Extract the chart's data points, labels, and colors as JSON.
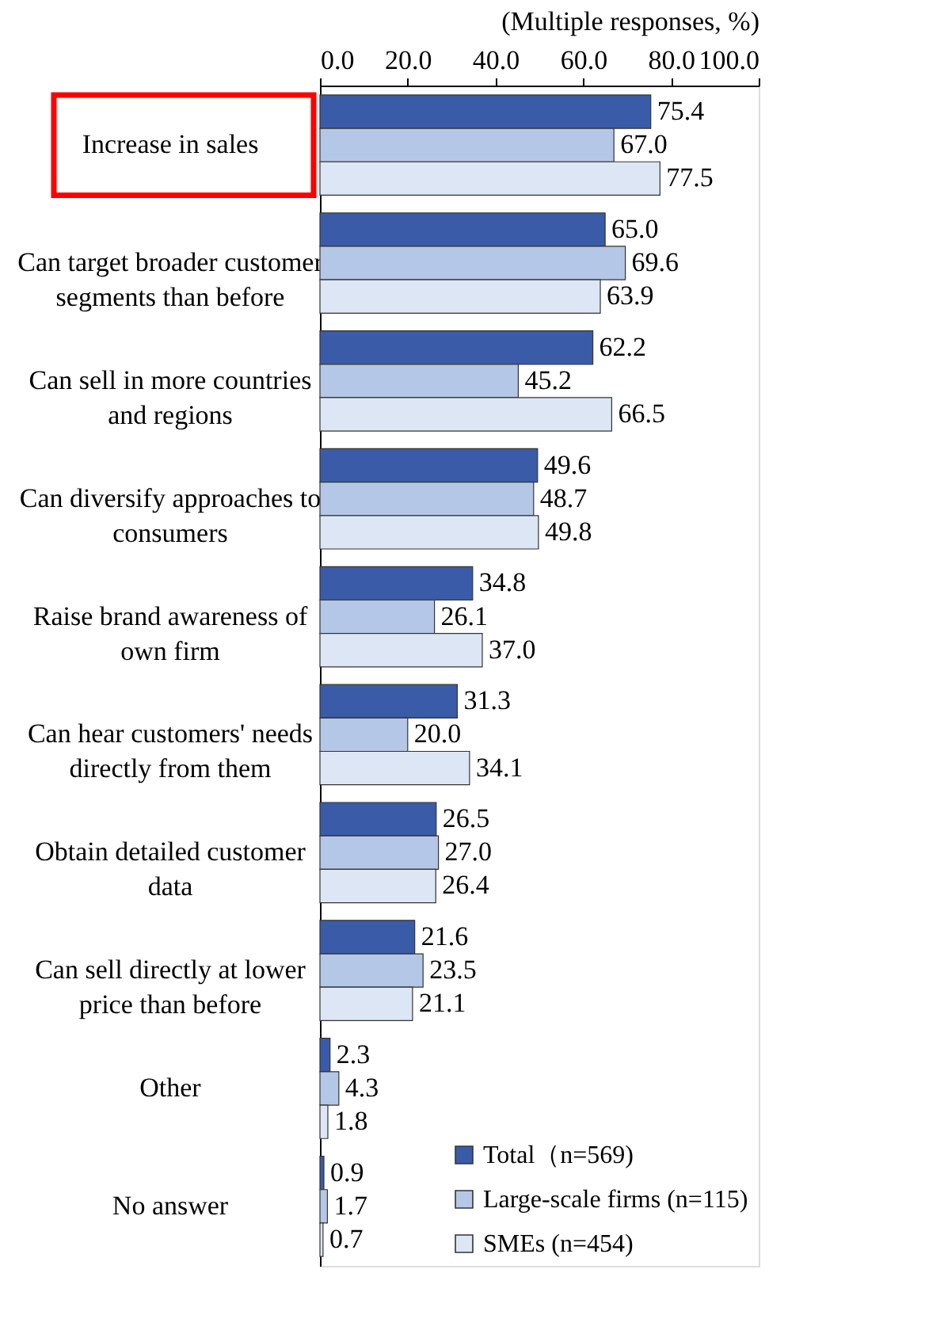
{
  "chart_data": {
    "type": "bar",
    "orientation": "horizontal",
    "title": "(Multiple responses, %)",
    "categories": [
      "Increase in sales",
      "Can target broader customer segments than before",
      "Can sell in more countries and regions",
      "Can diversify approaches to consumers",
      "Raise brand awareness of own firm",
      "Can hear customers' needs directly from them",
      "Obtain detailed customer data",
      "Can sell directly at lower price than before",
      "Other",
      "No answer"
    ],
    "series": [
      {
        "name": "Total（n=569)",
        "color": "#3a5ba8",
        "values": [
          75.4,
          65.0,
          62.2,
          49.6,
          34.8,
          31.3,
          26.5,
          21.6,
          2.3,
          0.9
        ],
        "value_labels": [
          "75.4",
          "65.0",
          "62.2",
          "49.6",
          "34.8",
          "31.3",
          "26.5",
          "21.6",
          "2.3",
          "0.9"
        ]
      },
      {
        "name": "Large-scale firms (n=115)",
        "color": "#b4c7e7",
        "values": [
          67.0,
          69.6,
          45.2,
          48.7,
          26.1,
          20.0,
          27.0,
          23.5,
          4.3,
          1.7
        ],
        "value_labels": [
          "67.0",
          "69.6",
          "45.2",
          "48.7",
          "26.1",
          "20.0",
          "27.0",
          "23.5",
          "4.3",
          "1.7"
        ]
      },
      {
        "name": "SMEs (n=454)",
        "color": "#dce6f4",
        "values": [
          77.5,
          63.9,
          66.5,
          49.8,
          37.0,
          34.1,
          26.4,
          21.1,
          1.8,
          0.7
        ],
        "value_labels": [
          "77.5",
          "63.9",
          "66.5",
          "49.8",
          "37.0",
          "34.1",
          "26.4",
          "21.1",
          "1.8",
          "0.7"
        ]
      }
    ],
    "xlim": [
      0,
      100
    ],
    "xticks": [
      {
        "value": 0,
        "label": "0.0"
      },
      {
        "value": 20,
        "label": "20.0"
      },
      {
        "value": 40,
        "label": "40.0"
      },
      {
        "value": 60,
        "label": "60.0"
      },
      {
        "value": 80,
        "label": "80.0"
      },
      {
        "value": 100,
        "label": "100.0"
      }
    ],
    "legend": "bottom right",
    "grid": false
  }
}
